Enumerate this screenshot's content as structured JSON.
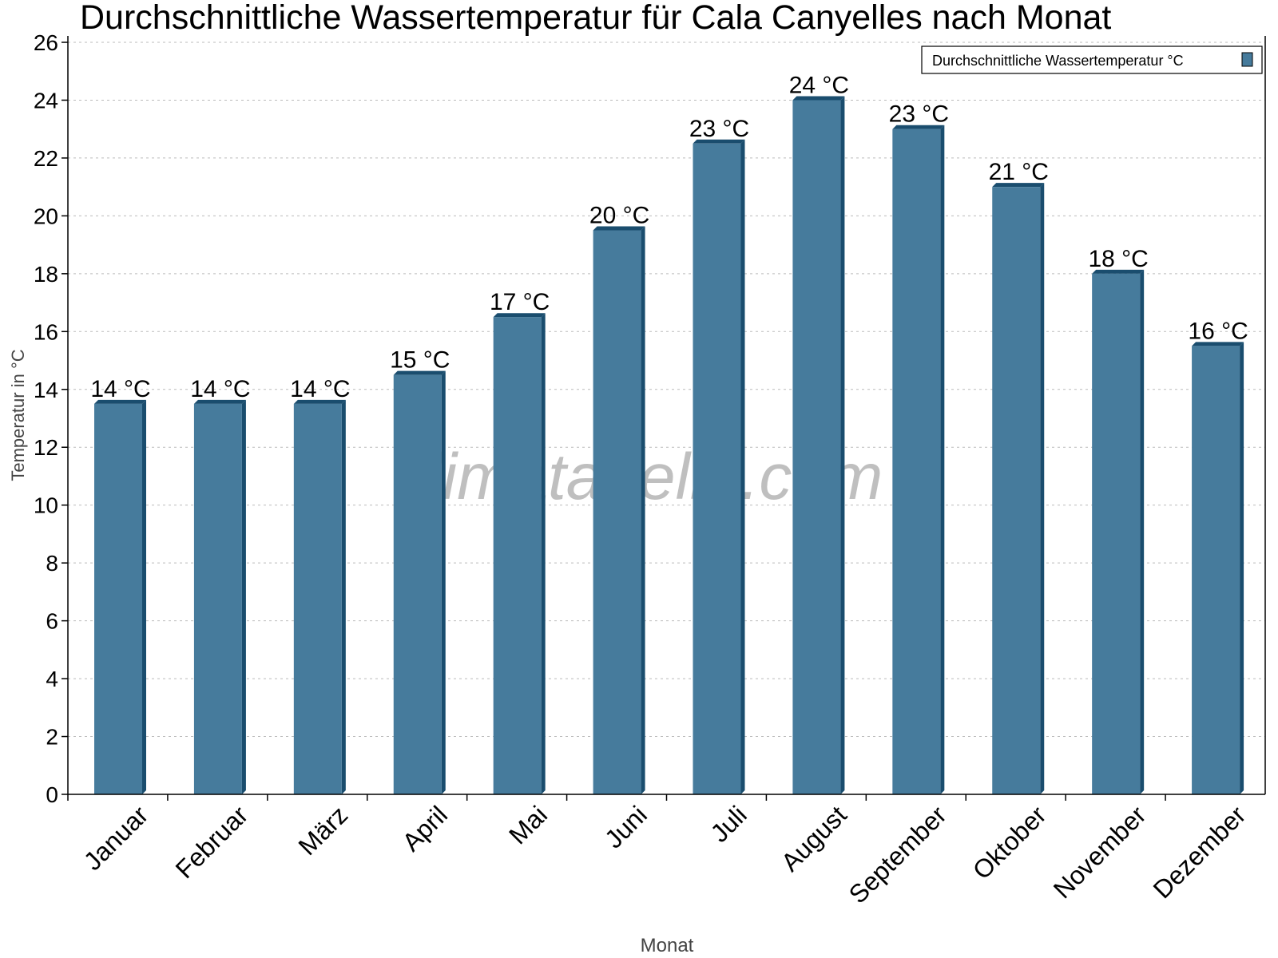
{
  "chart_data": {
    "type": "bar",
    "title": "Durchschnittliche Wassertemperatur für Cala Canyelles nach Monat",
    "xlabel": "Monat",
    "ylabel": "Temperatur in °C",
    "ylim": [
      0,
      26
    ],
    "yticks": [
      0,
      2,
      4,
      6,
      8,
      10,
      12,
      14,
      16,
      18,
      20,
      22,
      24,
      26
    ],
    "grid": true,
    "legend_position": "top-right",
    "categories": [
      "Januar",
      "Februar",
      "März",
      "April",
      "Mai",
      "Juni",
      "Juli",
      "August",
      "September",
      "Oktober",
      "November",
      "Dezember"
    ],
    "series": [
      {
        "name": "Durchschnittliche Wassertemperatur °C",
        "values": [
          13.5,
          13.5,
          13.5,
          14.5,
          16.5,
          19.5,
          22.5,
          24,
          23,
          21,
          18,
          15.5
        ],
        "data_labels": [
          "14 °C",
          "14 °C",
          "14 °C",
          "15 °C",
          "17 °C",
          "20 °C",
          "23 °C",
          "24 °C",
          "23 °C",
          "21 °C",
          "18 °C",
          "16 °C"
        ],
        "color": "#467b9c",
        "side_color": "#1a4d6e"
      }
    ],
    "watermark": "klimatabelle.com"
  }
}
